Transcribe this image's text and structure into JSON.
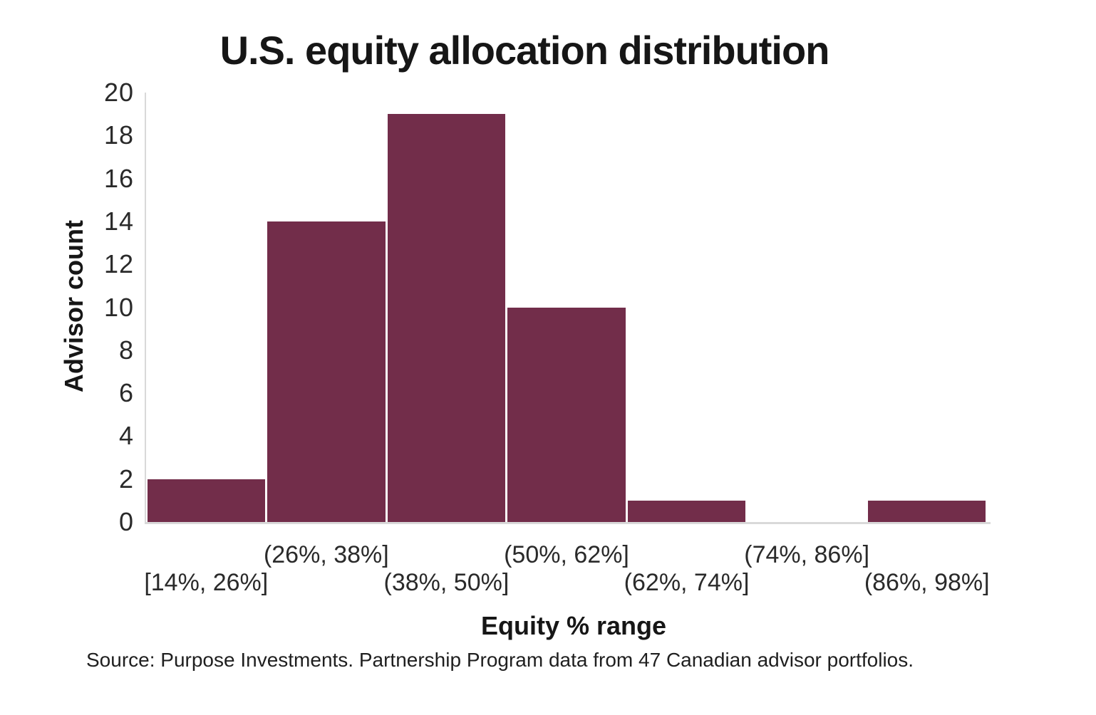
{
  "chart_data": {
    "type": "bar",
    "subtype": "histogram",
    "title": "U.S. equity allocation distribution",
    "xlabel": "Equity % range",
    "ylabel": "Advisor count",
    "categories": [
      "[14%, 26%]",
      "(26%, 38%]",
      "(38%, 50%]",
      "(50%, 62%]",
      "(62%, 74%]",
      "(74%, 86%]",
      "(86%, 98%]"
    ],
    "values": [
      2,
      14,
      19,
      10,
      1,
      0,
      1
    ],
    "yticks": [
      0,
      2,
      4,
      6,
      8,
      10,
      12,
      14,
      16,
      18,
      20
    ],
    "ylim": [
      0,
      20
    ],
    "grid": "off",
    "legend": "none",
    "bar_color": "#722d4a",
    "axis_color": "#d9d9d9",
    "text_color": "#1f1f1f",
    "source": "Source: Purpose Investments. Partnership Program data from 47 Canadian advisor portfolios."
  }
}
